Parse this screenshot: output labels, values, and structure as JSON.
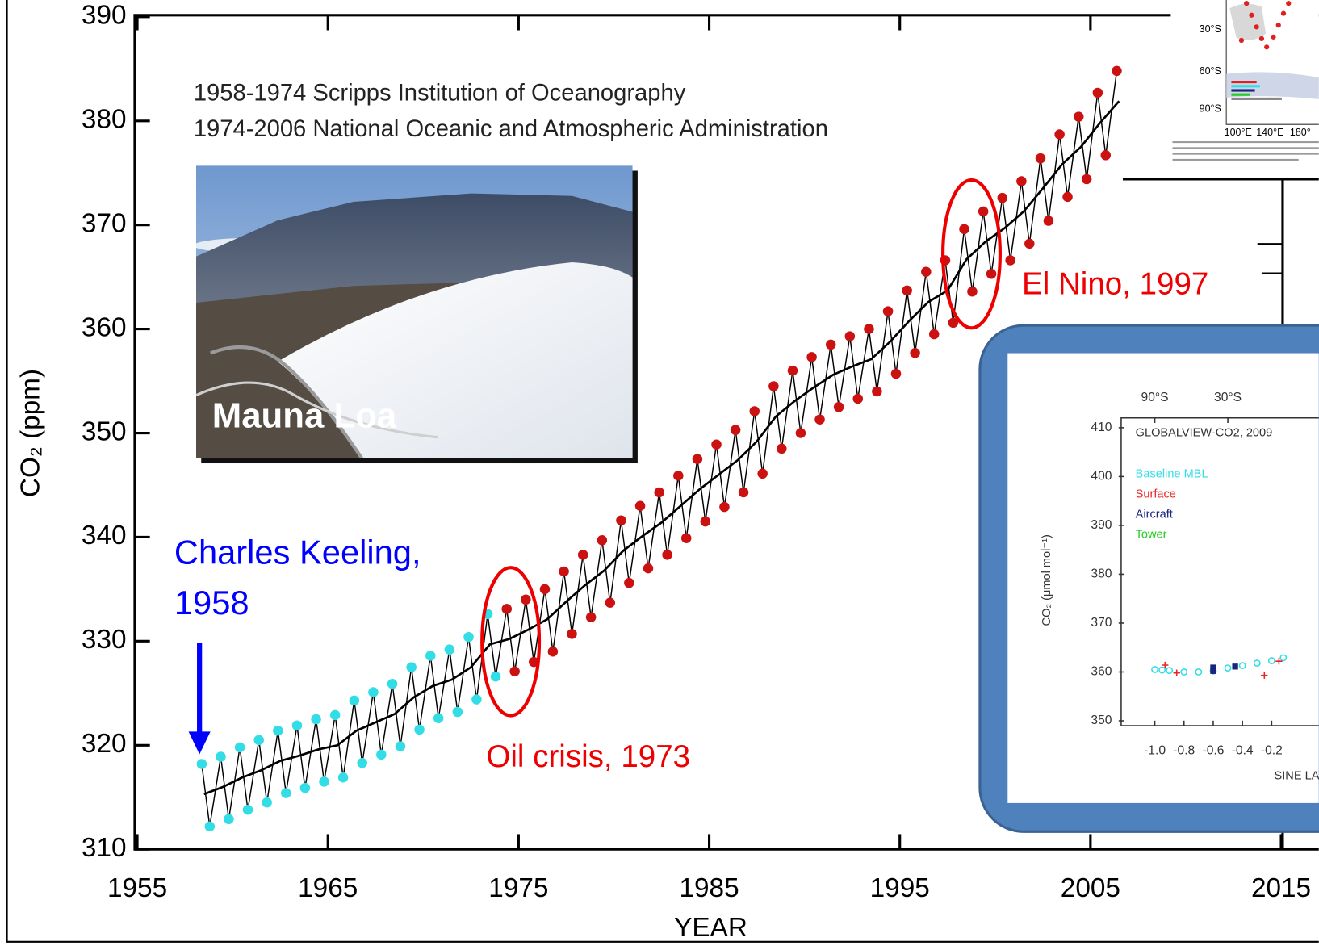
{
  "chart_data": [
    {
      "type": "line",
      "x_label": "YEAR",
      "y_label": "CO₂ (ppm)",
      "annotations": [
        "1958-1974 Scripps Institution of Oceanography",
        "1974-2006 National Oceanic and Atmospheric Administration",
        "Mauna Loa",
        "Charles Keeling,",
        "1958",
        "Oil crisis, 1973",
        "El Nino, 1997"
      ],
      "xlim": [
        1955,
        2017
      ],
      "ylim": [
        310,
        390
      ],
      "xticks": [
        1955,
        1965,
        1975,
        1985,
        1995,
        2005,
        2015
      ],
      "yticks": [
        310,
        320,
        330,
        340,
        350,
        360,
        370,
        380,
        390
      ],
      "series": [
        {
          "color": "#33dde6",
          "line_color": "#000000",
          "marker": "circle",
          "x": [
            1958.38,
            1958.8,
            1959.38,
            1959.8,
            1960.38,
            1960.8,
            1961.38,
            1961.8,
            1962.38,
            1962.8,
            1963.38,
            1963.8,
            1964.38,
            1964.8,
            1965.38,
            1965.8,
            1966.38,
            1966.8,
            1967.38,
            1967.8,
            1968.38,
            1968.8,
            1969.38,
            1969.8,
            1970.38,
            1970.8,
            1971.38,
            1971.8,
            1972.38,
            1972.8,
            1973.38,
            1973.8,
            1974.38
          ],
          "values": [
            318.2,
            312.2,
            318.9,
            312.9,
            319.8,
            313.8,
            320.5,
            314.5,
            321.4,
            315.4,
            321.9,
            315.9,
            322.5,
            316.5,
            322.9,
            316.9,
            324.3,
            318.3,
            325.1,
            319.1,
            325.9,
            319.9,
            327.5,
            321.5,
            328.6,
            322.6,
            329.2,
            323.2,
            330.4,
            324.4,
            332.6,
            326.6,
            333.1
          ]
        },
        {
          "color": "#cc1111",
          "line_color": "#000000",
          "marker": "circle",
          "x": [
            1974.38,
            1974.8,
            1975.38,
            1975.8,
            1976.38,
            1976.8,
            1977.38,
            1977.8,
            1978.38,
            1978.8,
            1979.38,
            1979.8,
            1980.38,
            1980.8,
            1981.38,
            1981.8,
            1982.38,
            1982.8,
            1983.38,
            1983.8,
            1984.38,
            1984.8,
            1985.38,
            1985.8,
            1986.38,
            1986.8,
            1987.38,
            1987.8,
            1988.38,
            1988.8,
            1989.38,
            1989.8,
            1990.38,
            1990.8,
            1991.38,
            1991.8,
            1992.38,
            1992.8,
            1993.38,
            1993.8,
            1994.38,
            1994.8,
            1995.38,
            1995.8,
            1996.38,
            1996.8,
            1997.38,
            1997.8,
            1998.38,
            1998.8,
            1999.38,
            1999.8,
            2000.38,
            2000.8,
            2001.38,
            2001.8,
            2002.38,
            2002.8,
            2003.38,
            2003.8,
            2004.38,
            2004.8,
            2005.38,
            2005.8,
            2006.38
          ],
          "values": [
            333.1,
            327.1,
            334.0,
            328.0,
            335.0,
            329.0,
            336.7,
            330.7,
            338.3,
            332.3,
            339.7,
            333.7,
            341.6,
            335.6,
            343.0,
            337.0,
            344.3,
            338.3,
            345.9,
            339.9,
            347.5,
            341.5,
            348.9,
            342.9,
            350.3,
            344.3,
            352.1,
            346.1,
            354.5,
            348.5,
            356.0,
            350.0,
            357.3,
            351.3,
            358.5,
            352.5,
            359.3,
            353.3,
            360.0,
            354.0,
            361.7,
            355.7,
            363.7,
            357.7,
            365.5,
            359.5,
            366.6,
            360.6,
            369.6,
            363.6,
            371.3,
            365.3,
            372.6,
            366.6,
            374.2,
            368.2,
            376.4,
            370.4,
            378.7,
            372.7,
            380.4,
            374.4,
            382.7,
            376.7,
            384.8
          ]
        },
        {
          "color": "#000000",
          "x": [
            1958.5,
            1959.5,
            1960.5,
            1961.5,
            1962.5,
            1963.5,
            1964.5,
            1965.5,
            1966.5,
            1967.5,
            1968.5,
            1969.5,
            1970.5,
            1971.5,
            1972.5,
            1973.5,
            1974.5,
            1975.5,
            1976.5,
            1977.5,
            1978.5,
            1979.5,
            1980.5,
            1981.5,
            1982.5,
            1983.5,
            1984.5,
            1985.5,
            1986.5,
            1987.5,
            1988.5,
            1989.5,
            1990.5,
            1991.5,
            1992.5,
            1993.5,
            1994.5,
            1995.5,
            1996.5,
            1997.5,
            1998.5,
            1999.5,
            2000.5,
            2001.5,
            2002.5,
            2003.5,
            2004.5,
            2005.5,
            2006.5
          ],
          "values": [
            315.3,
            316.0,
            316.9,
            317.6,
            318.5,
            319.0,
            319.6,
            320.0,
            321.4,
            322.2,
            323.0,
            324.6,
            325.7,
            326.3,
            327.5,
            329.7,
            330.2,
            331.1,
            332.1,
            333.8,
            335.4,
            336.8,
            338.7,
            340.1,
            341.4,
            343.0,
            344.6,
            346.0,
            347.4,
            349.2,
            351.6,
            353.1,
            354.4,
            355.6,
            356.4,
            357.1,
            358.8,
            360.8,
            362.6,
            363.7,
            366.7,
            368.4,
            369.7,
            371.3,
            373.5,
            375.8,
            377.5,
            379.8,
            381.9
          ]
        }
      ]
    },
    {
      "type": "scatter",
      "title": "GLOBALVIEW-CO2, 2009",
      "x_label": "SINE LATITUDE",
      "y_label": "CO₂ (μmol mol⁻¹)",
      "xlim": [
        -1.23,
        1.23
      ],
      "ylim": [
        349,
        412
      ],
      "xticks": [
        {
          "value": -1,
          "label": "-1.0"
        },
        -0.8,
        -0.6,
        -0.4,
        -0.2
      ],
      "x2ticks": [
        {
          "value": -1,
          "label": "90°S"
        },
        {
          "value": -0.5,
          "label": "30°S"
        }
      ],
      "yticks": [
        350,
        360,
        370,
        380,
        390,
        400,
        410
      ],
      "series": [
        {
          "name": "Baseline MBL",
          "color": "#33dde6",
          "marker": "circle",
          "x": [
            -1.0,
            -0.95,
            -0.9,
            -0.8,
            -0.7,
            -0.6,
            -0.5,
            -0.4,
            -0.3,
            -0.2,
            -0.12
          ],
          "values": [
            360.5,
            360.4,
            360.3,
            360.0,
            360.0,
            360.2,
            360.8,
            361.3,
            361.8,
            362.3,
            362.9
          ]
        },
        {
          "name": "Surface",
          "color": "#ee2222",
          "marker": "plus",
          "x": [
            -0.93,
            -0.85,
            -0.25,
            -0.15
          ],
          "values": [
            361.4,
            359.8,
            359.3,
            362.2
          ]
        },
        {
          "name": "Aircraft",
          "color": "#1a237e",
          "marker": "square",
          "x": [
            -0.6,
            -0.6,
            -0.45
          ],
          "values": [
            360.9,
            360.2,
            361.1
          ]
        },
        {
          "name": "Tower",
          "color": "#22cc22",
          "marker": "circle",
          "x": [],
          "values": []
        }
      ]
    }
  ],
  "map_inset": {
    "lat_labels": [
      "30°S",
      "60°S",
      "90°S"
    ],
    "lon_labels": [
      "100°E",
      "140°E",
      "180°"
    ]
  }
}
